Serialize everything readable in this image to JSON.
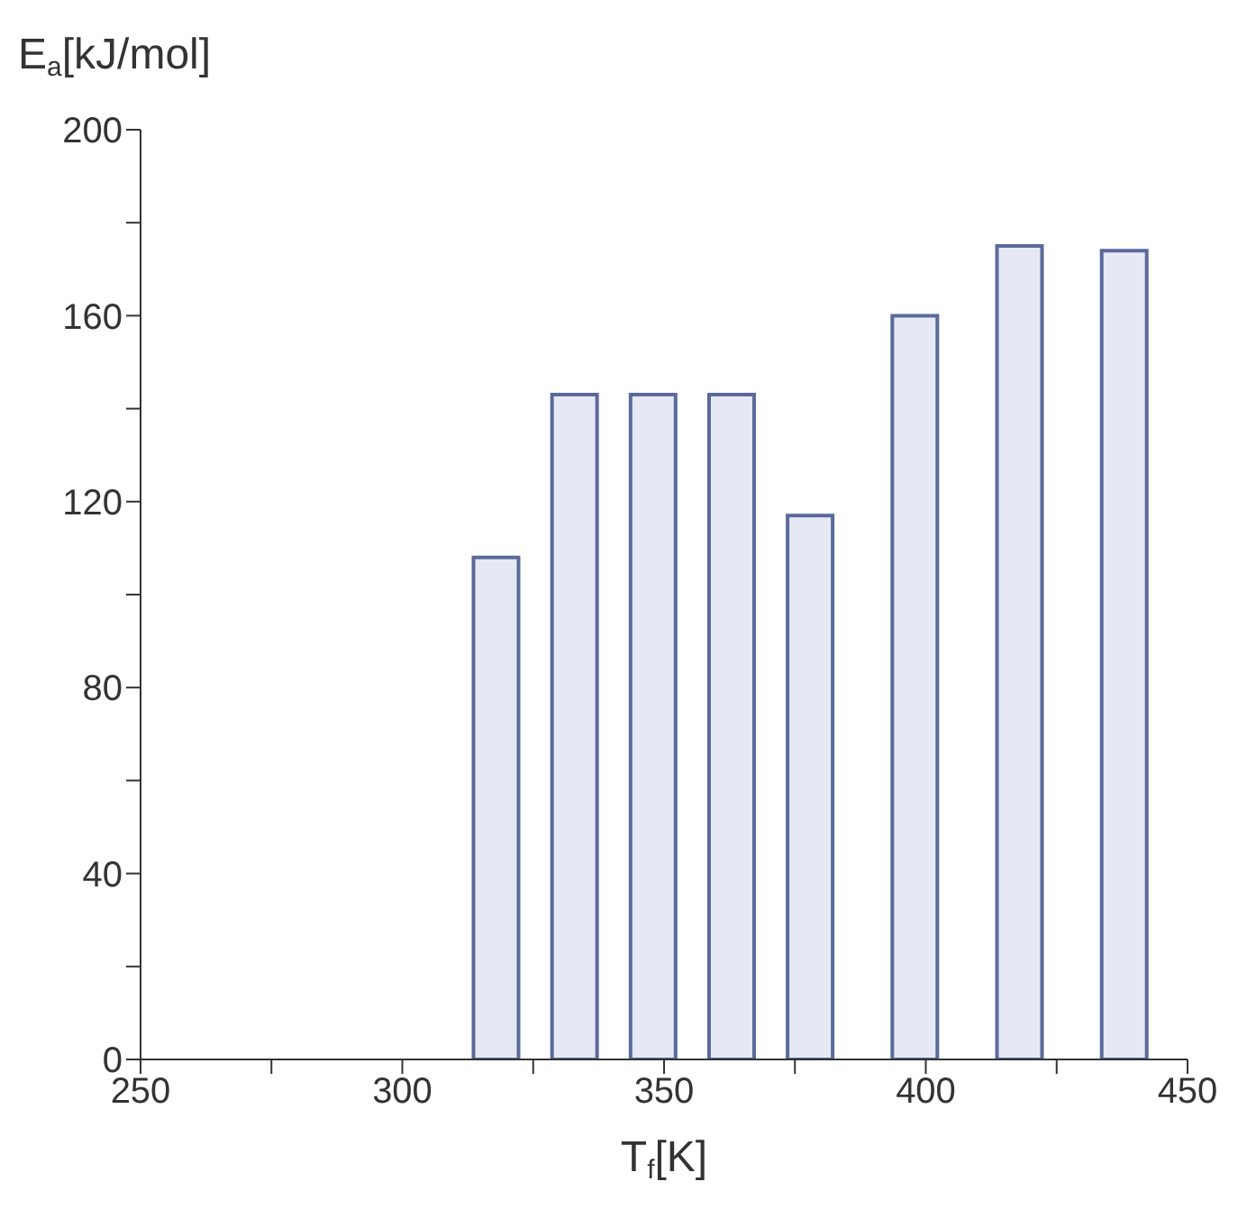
{
  "chart_data": {
    "type": "bar",
    "xlabel": "T$_{f}$[K]",
    "ylabel": "E$_{a}$[kJ/mol]",
    "x": [
      318,
      333,
      348,
      363,
      378,
      398,
      418,
      438
    ],
    "values": [
      108,
      143,
      143,
      143,
      117,
      160,
      175,
      174
    ],
    "color": "#e6e9f4",
    "xlim": [
      250,
      450
    ],
    "xticks": [
      250,
      {
        "value": 275,
        "label": null
      },
      300,
      {
        "value": 325,
        "label": null
      },
      350,
      {
        "value": 375,
        "label": null
      },
      400,
      {
        "value": 425,
        "label": null
      },
      450
    ],
    "ylim": [
      0,
      200
    ],
    "yticks": [
      0,
      {
        "value": 20,
        "label": null
      },
      40,
      {
        "value": 60,
        "label": null
      },
      80,
      {
        "value": 100,
        "label": null
      },
      120,
      {
        "value": 140,
        "label": null
      },
      160,
      {
        "value": 180,
        "label": null
      },
      200
    ],
    "grid": false
  }
}
